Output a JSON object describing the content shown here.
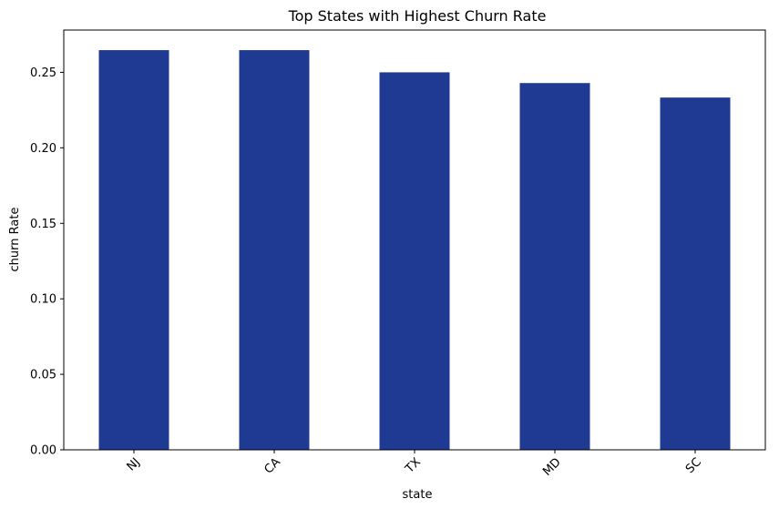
{
  "chart_data": {
    "type": "bar",
    "title": "Top States with Highest Churn Rate",
    "xlabel": "state",
    "ylabel": "churn Rate",
    "categories": [
      "NJ",
      "CA",
      "TX",
      "MD",
      "SC"
    ],
    "values": [
      0.2647,
      0.2647,
      0.25,
      0.2429,
      0.2333
    ],
    "ylim": [
      0,
      0.278
    ],
    "yticks": [
      "0.00",
      "0.05",
      "0.10",
      "0.15",
      "0.20",
      "0.25"
    ],
    "bar_color": "#1f3a93",
    "grid": false,
    "legend": false
  }
}
